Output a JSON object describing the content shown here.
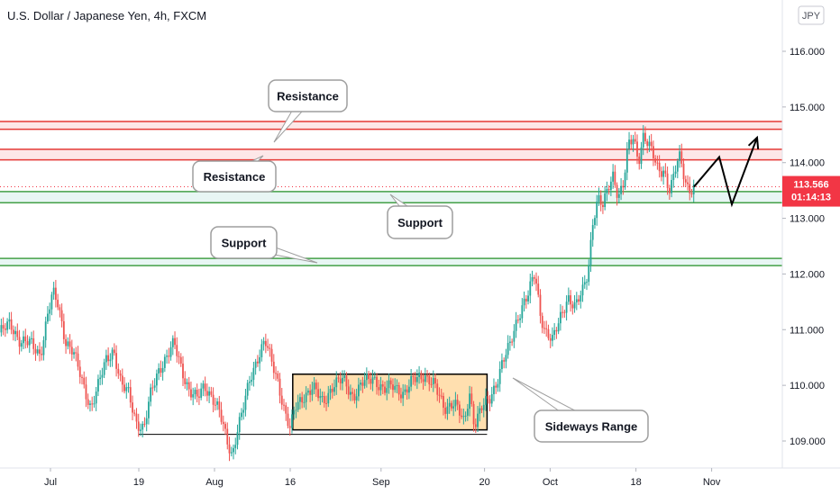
{
  "chart_data": {
    "type": "candlestick",
    "title": "U.S. Dollar / Japanese Yen, 4h, FXCM",
    "currency": "JPY",
    "y_axis": {
      "min": 108.6,
      "max": 116.6,
      "ticks": [
        {
          "value": 109,
          "label": "109.000"
        },
        {
          "value": 110,
          "label": "110.000"
        },
        {
          "value": 111,
          "label": "111.000"
        },
        {
          "value": 112,
          "label": "112.000"
        },
        {
          "value": 113,
          "label": "113.000"
        },
        {
          "value": 114,
          "label": "114.000"
        },
        {
          "value": 115,
          "label": "115.000"
        },
        {
          "value": 116,
          "label": "116.000"
        }
      ]
    },
    "x_axis": {
      "ticks": [
        {
          "label": "Jul",
          "t": 20
        },
        {
          "label": "19",
          "t": 55
        },
        {
          "label": "Aug",
          "t": 85
        },
        {
          "label": "16",
          "t": 115
        },
        {
          "label": "Sep",
          "t": 151
        },
        {
          "label": "20",
          "t": 192
        },
        {
          "label": "Oct",
          "t": 218
        },
        {
          "label": "18",
          "t": 252
        },
        {
          "label": "Nov",
          "t": 282
        }
      ],
      "range": [
        0,
        310
      ]
    },
    "current_price": {
      "value": 113.566,
      "label": "113.566",
      "countdown": "01:14:13"
    },
    "resistance_levels": [
      114.74,
      114.6,
      114.24,
      114.05
    ],
    "support_levels": [
      113.48,
      113.28,
      112.28,
      112.15
    ],
    "price_path": [
      [
        0,
        110.95
      ],
      [
        4,
        111.1
      ],
      [
        8,
        110.8
      ],
      [
        12,
        110.75
      ],
      [
        16,
        110.55
      ],
      [
        19,
        111.3
      ],
      [
        21,
        111.65
      ],
      [
        23,
        111.45
      ],
      [
        26,
        110.8
      ],
      [
        29,
        110.6
      ],
      [
        33,
        110.0
      ],
      [
        36,
        109.6
      ],
      [
        39,
        110.0
      ],
      [
        42,
        110.45
      ],
      [
        45,
        110.65
      ],
      [
        48,
        110.0
      ],
      [
        51,
        109.85
      ],
      [
        54,
        109.35
      ],
      [
        57,
        109.2
      ],
      [
        60,
        109.9
      ],
      [
        63,
        110.3
      ],
      [
        66,
        110.5
      ],
      [
        69,
        110.75
      ],
      [
        72,
        110.3
      ],
      [
        75,
        109.9
      ],
      [
        78,
        109.75
      ],
      [
        81,
        110.0
      ],
      [
        84,
        109.8
      ],
      [
        87,
        109.5
      ],
      [
        90,
        109.0
      ],
      [
        92,
        108.75
      ],
      [
        94,
        109.2
      ],
      [
        96,
        109.5
      ],
      [
        99,
        110.1
      ],
      [
        102,
        110.5
      ],
      [
        105,
        110.8
      ],
      [
        107,
        110.5
      ],
      [
        110,
        110.1
      ],
      [
        113,
        109.5
      ],
      [
        115,
        109.2
      ],
      [
        117,
        109.6
      ],
      [
        120,
        109.8
      ],
      [
        124,
        109.95
      ],
      [
        128,
        109.7
      ],
      [
        132,
        110.0
      ],
      [
        136,
        110.1
      ],
      [
        140,
        109.8
      ],
      [
        144,
        110.05
      ],
      [
        148,
        110.15
      ],
      [
        152,
        109.9
      ],
      [
        156,
        110.0
      ],
      [
        160,
        109.85
      ],
      [
        164,
        110.1
      ],
      [
        168,
        110.2
      ],
      [
        172,
        110.0
      ],
      [
        176,
        109.6
      ],
      [
        180,
        109.7
      ],
      [
        184,
        109.3
      ],
      [
        186,
        109.9
      ],
      [
        188,
        109.3
      ],
      [
        191,
        109.6
      ],
      [
        194,
        109.75
      ],
      [
        197,
        110.1
      ],
      [
        199,
        110.4
      ],
      [
        202,
        110.7
      ],
      [
        205,
        111.2
      ],
      [
        207,
        111.45
      ],
      [
        209,
        111.6
      ],
      [
        212,
        112.0
      ],
      [
        214,
        111.3
      ],
      [
        216,
        111.0
      ],
      [
        219,
        110.8
      ],
      [
        222,
        111.2
      ],
      [
        225,
        111.6
      ],
      [
        228,
        111.4
      ],
      [
        231,
        111.7
      ],
      [
        233,
        112.05
      ],
      [
        235,
        113.0
      ],
      [
        237,
        113.35
      ],
      [
        239,
        113.2
      ],
      [
        241,
        113.55
      ],
      [
        243,
        113.8
      ],
      [
        245,
        113.4
      ],
      [
        247,
        113.6
      ],
      [
        249,
        114.3
      ],
      [
        251,
        114.45
      ],
      [
        253,
        114.05
      ],
      [
        255,
        114.5
      ],
      [
        257,
        114.3
      ],
      [
        259,
        114.1
      ],
      [
        261,
        113.85
      ],
      [
        263,
        113.9
      ],
      [
        265,
        113.5
      ],
      [
        267,
        113.7
      ],
      [
        269,
        114.15
      ],
      [
        271,
        113.8
      ],
      [
        273,
        113.5
      ],
      [
        275,
        113.566
      ]
    ],
    "projection": [
      [
        275,
        113.566
      ],
      [
        285,
        114.1
      ],
      [
        290,
        113.25
      ],
      [
        300,
        114.45
      ]
    ],
    "range_box": {
      "t0": 116,
      "t1": 193,
      "low": 109.2,
      "high": 110.2
    },
    "range_baseline": {
      "t0": 55,
      "t1": 193,
      "value": 109.12
    },
    "annotations": [
      {
        "text": "Resistance",
        "key": "res1"
      },
      {
        "text": "Resistance",
        "key": "res2"
      },
      {
        "text": "Support",
        "key": "sup1"
      },
      {
        "text": "Support",
        "key": "sup2"
      },
      {
        "text": "Sideways Range",
        "key": "range"
      }
    ]
  }
}
